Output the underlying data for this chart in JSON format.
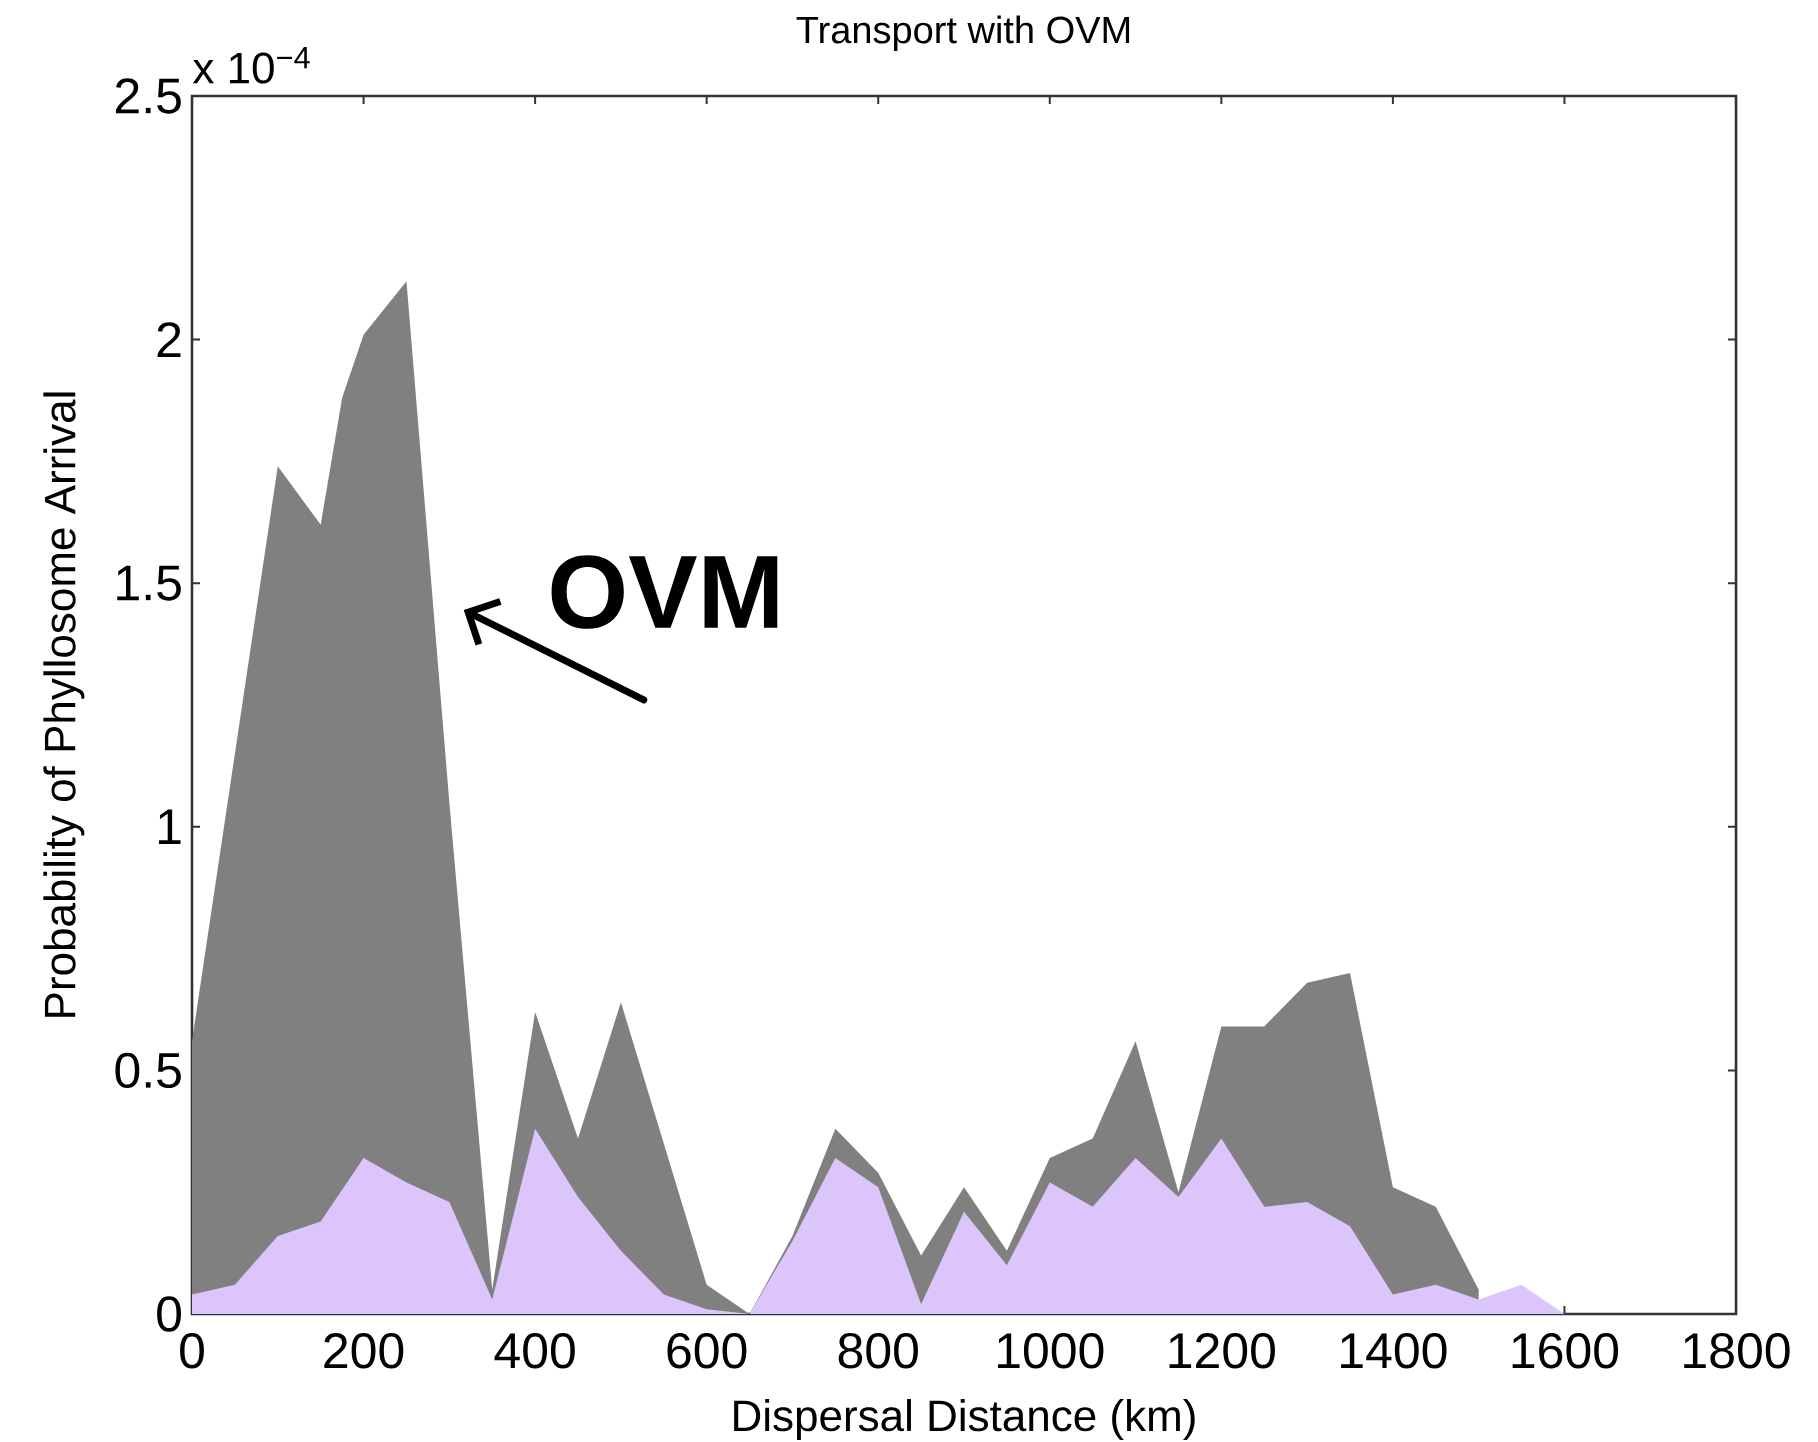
{
  "chart_data": {
    "type": "area",
    "title": "Transport with OVM",
    "xlabel": "Dispersal Distance (km)",
    "ylabel": "Probability of Phyllosome Arrival",
    "annotations": [
      "x 10$^{−4}$",
      "OVM"
    ],
    "series": [
      {
        "color": "#808080",
        "x": [
          0,
          50,
          100,
          150,
          175,
          200,
          250,
          300,
          350,
          400,
          450,
          500,
          550,
          600,
          650,
          700,
          750,
          800,
          850,
          900,
          950,
          1000,
          1050,
          1100,
          1150,
          1200,
          1250,
          1300,
          1350,
          1400,
          1450,
          1500
        ],
        "values": [
          0.56,
          1.15,
          1.74,
          1.62,
          1.88,
          2.01,
          2.12,
          1.05,
          0.05,
          0.62,
          0.36,
          0.64,
          0.35,
          0.06,
          0,
          0.16,
          0.38,
          0.29,
          0.12,
          0.26,
          0.13,
          0.32,
          0.36,
          0.56,
          0.25,
          0.59,
          0.59,
          0.68,
          0.7,
          0.26,
          0.22,
          0.05
        ]
      },
      {
        "color": "#dcc5fb",
        "x": [
          0,
          50,
          100,
          150,
          200,
          250,
          300,
          350,
          400,
          450,
          500,
          550,
          600,
          650,
          700,
          750,
          800,
          850,
          900,
          950,
          1000,
          1050,
          1100,
          1150,
          1200,
          1250,
          1300,
          1350,
          1400,
          1450,
          1500,
          1550,
          1600
        ],
        "values": [
          0.04,
          0.06,
          0.16,
          0.19,
          0.32,
          0.27,
          0.23,
          0.03,
          0.38,
          0.24,
          0.13,
          0.04,
          0.01,
          0,
          0.15,
          0.32,
          0.26,
          0.02,
          0.21,
          0.1,
          0.27,
          0.22,
          0.32,
          0.24,
          0.36,
          0.22,
          0.23,
          0.18,
          0.04,
          0.06,
          0.03,
          0.06,
          0
        ]
      }
    ],
    "xlim": [
      0,
      1800
    ],
    "ylim": [
      0,
      2.5
    ],
    "xticks": [
      0,
      200,
      400,
      600,
      800,
      1000,
      1200,
      1400,
      1600,
      1800
    ],
    "yticks": [
      0,
      0.5,
      1,
      1.5,
      2,
      2.5
    ]
  }
}
